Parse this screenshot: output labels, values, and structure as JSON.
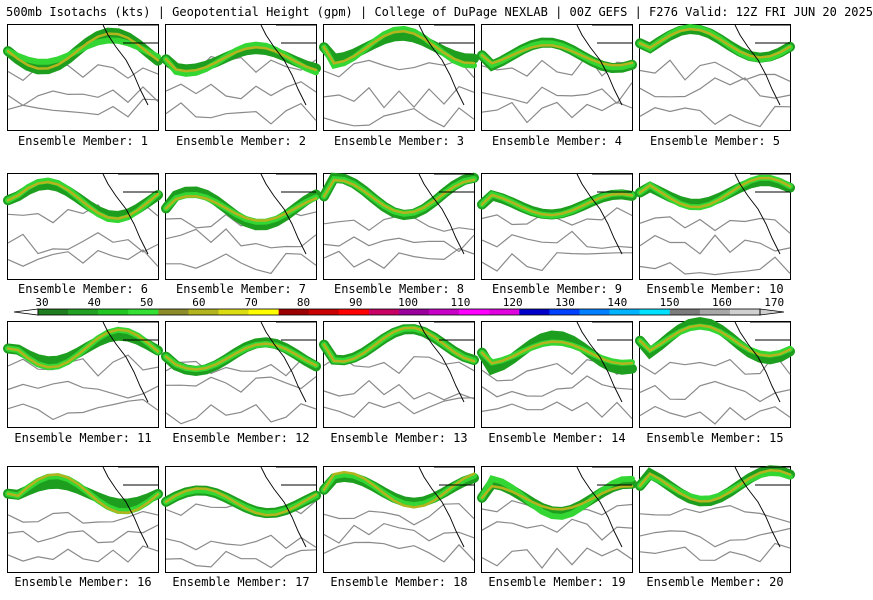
{
  "header": {
    "title": "500mb Isotachs (kts) | Geopotential Height (gpm) | College of DuPage NEXLAB",
    "run": "00Z GEFS | F276 Valid: 12Z FRI JUN 20 2025"
  },
  "members": [
    "Ensemble Member: 1",
    "Ensemble Member: 2",
    "Ensemble Member: 3",
    "Ensemble Member: 4",
    "Ensemble Member: 5",
    "Ensemble Member: 6",
    "Ensemble Member: 7",
    "Ensemble Member: 8",
    "Ensemble Member: 9",
    "Ensemble Member: 10",
    "Ensemble Member: 11",
    "Ensemble Member: 12",
    "Ensemble Member: 13",
    "Ensemble Member: 14",
    "Ensemble Member: 15",
    "Ensemble Member: 16",
    "Ensemble Member: 17",
    "Ensemble Member: 18",
    "Ensemble Member: 19",
    "Ensemble Member: 20"
  ],
  "colorbar": {
    "labels": [
      "30",
      "40",
      "50",
      "60",
      "70",
      "80",
      "90",
      "100",
      "110",
      "120",
      "130",
      "140",
      "150",
      "160",
      "170"
    ],
    "colors": [
      "#1e7d1e",
      "#21a021",
      "#22c622",
      "#34e034",
      "#8c8c2a",
      "#b4b41e",
      "#dcdc14",
      "#ffff00",
      "#9c0000",
      "#c80000",
      "#ff0000",
      "#c80064",
      "#9c009c",
      "#c800c8",
      "#ff00ff",
      "#e000e0",
      "#0000c8",
      "#0040ff",
      "#0080ff",
      "#00b4ff",
      "#00e0ff",
      "#7c7c7c",
      "#a8a8a8",
      "#d0d0d0"
    ]
  }
}
